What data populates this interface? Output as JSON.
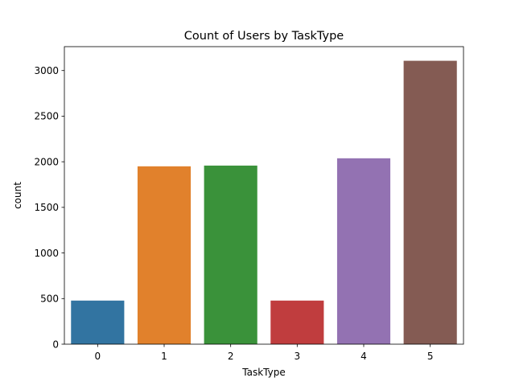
{
  "chart_data": {
    "type": "bar",
    "title": "Count of Users by TaskType",
    "xlabel": "TaskType",
    "ylabel": "count",
    "categories": [
      "0",
      "1",
      "2",
      "3",
      "4",
      "5"
    ],
    "values": [
      478,
      1950,
      1958,
      478,
      2038,
      3107
    ],
    "colors": [
      "#3274a1",
      "#e1812c",
      "#3a923a",
      "#c03d3e",
      "#9372b2",
      "#845b53"
    ],
    "ylim": [
      0,
      3262
    ],
    "yticks": [
      0,
      500,
      1000,
      1500,
      2000,
      2500,
      3000
    ],
    "ytick_labels": [
      "0",
      "500",
      "1000",
      "1500",
      "2000",
      "2500",
      "3000"
    ],
    "grid": false,
    "legend": "none"
  }
}
